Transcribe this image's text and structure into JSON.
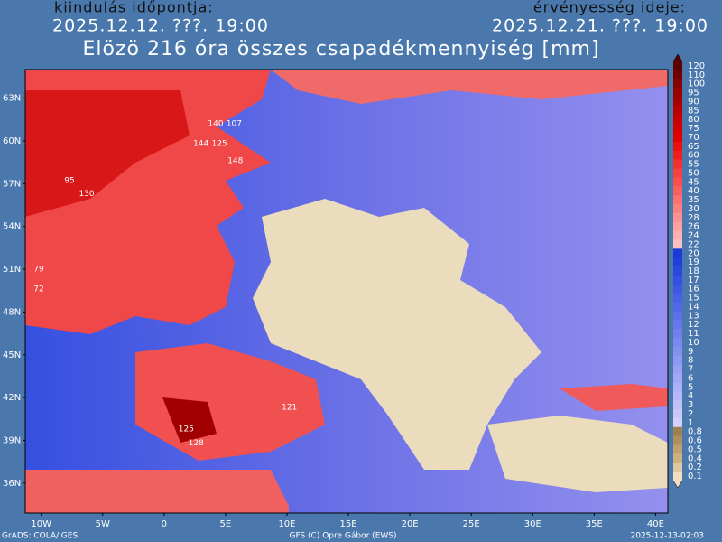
{
  "header": {
    "start_label": "kiindulás időpontja:",
    "start_date": "2025.12.12. ???. 19:00",
    "valid_label": "érvényesség ideje:",
    "valid_date": "2025.12.21. ???. 19:00",
    "title": "Elözö 216 óra összes csapadékmennyiség [mm]"
  },
  "map": {
    "lonlim": [
      -11.3,
      41
    ],
    "latlim": [
      33.9,
      65
    ],
    "lat_ticks": [
      {
        "value": 63,
        "label": "63N"
      },
      {
        "value": 60,
        "label": "60N"
      },
      {
        "value": 57,
        "label": "57N"
      },
      {
        "value": 54,
        "label": "54N"
      },
      {
        "value": 51,
        "label": "51N"
      },
      {
        "value": 48,
        "label": "48N"
      },
      {
        "value": 45,
        "label": "45N"
      },
      {
        "value": 42,
        "label": "42N"
      },
      {
        "value": 39,
        "label": "39N"
      },
      {
        "value": 36,
        "label": "36N"
      }
    ],
    "lon_ticks": [
      {
        "value": -10,
        "label": "10W"
      },
      {
        "value": -5,
        "label": "5W"
      },
      0,
      {
        "value": 5,
        "label": "5E"
      },
      {
        "value": 10,
        "label": "10E"
      },
      {
        "value": 15,
        "label": "15E"
      },
      {
        "value": 20,
        "label": "20E"
      },
      {
        "value": 25,
        "label": "25E"
      },
      {
        "value": 30,
        "label": "30E"
      },
      {
        "value": 35,
        "label": "35E"
      },
      {
        "value": 40,
        "label": "40E"
      }
    ],
    "points": [
      {
        "lon": 4.2,
        "lat": 61.2,
        "value": 140
      },
      {
        "lon": 5.7,
        "lat": 61.2,
        "value": 107
      },
      {
        "lon": 3.0,
        "lat": 59.8,
        "value": 144
      },
      {
        "lon": 4.5,
        "lat": 59.8,
        "value": 125
      },
      {
        "lon": 5.8,
        "lat": 58.6,
        "value": 148
      },
      {
        "lon": -6.3,
        "lat": 56.3,
        "value": 130
      },
      {
        "lon": -7.7,
        "lat": 57.2,
        "value": 95
      },
      {
        "lon": 2.6,
        "lat": 38.8,
        "value": 128
      },
      {
        "lon": 1.8,
        "lat": 39.8,
        "value": 125
      },
      {
        "lon": 10.2,
        "lat": 41.3,
        "value": 121
      },
      {
        "lon": -10.2,
        "lat": 51.0,
        "value": 79
      },
      {
        "lon": -10.2,
        "lat": 49.6,
        "value": 72
      }
    ]
  },
  "colorbar": {
    "labels": [
      "120",
      "110",
      "100",
      "95",
      "90",
      "85",
      "80",
      "75",
      "70",
      "65",
      "60",
      "55",
      "50",
      "45",
      "40",
      "35",
      "30",
      "28",
      "26",
      "24",
      "22",
      "20",
      "19",
      "18",
      "17",
      "16",
      "15",
      "14",
      "13",
      "12",
      "11",
      "10",
      "9",
      "8",
      "7",
      "6",
      "5",
      "4",
      "3",
      "2",
      "1",
      "0.8",
      "0.6",
      "0.5",
      "0.4",
      "0.2",
      "0.1"
    ],
    "colors": [
      "#5a0000",
      "#700000",
      "#850000",
      "#990000",
      "#a80000",
      "#b80000",
      "#c80000",
      "#d40000",
      "#e00000",
      "#e81010",
      "#f02020",
      "#f53030",
      "#f84040",
      "#fa5050",
      "#fb6060",
      "#fc7070",
      "#fd8080",
      "#fd9090",
      "#fea0a0",
      "#feb0b0",
      "#ffc0c0",
      "#1a3ad8",
      "#2040dc",
      "#2a48e0",
      "#3450e2",
      "#3e58e4",
      "#4860e6",
      "#5268e8",
      "#5c70ea",
      "#6678ec",
      "#7080ee",
      "#7a88f0",
      "#8490f0",
      "#8e98f2",
      "#98a0f4",
      "#a2a8f5",
      "#acb0f6",
      "#b6b8f7",
      "#c0c0f8",
      "#cac8f9",
      "#d4d0fa",
      "#a08050",
      "#b09060",
      "#c0a070",
      "#d0b080",
      "#e0c8a0",
      "#f0e0c0"
    ]
  },
  "footer": {
    "left": "GrADS: COLA/IGES",
    "center": "GFS (C) Opre Gábor (EWS)",
    "right": "2025-12-13-02:03"
  }
}
